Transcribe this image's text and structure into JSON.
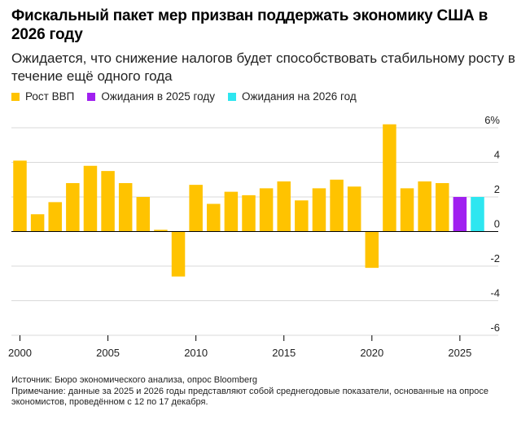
{
  "header": {
    "title": "Фискальный пакет мер призван поддержать экономику США в 2026 году",
    "subtitle": "Ожидается, что снижение налогов будет способствовать стабильному росту в течение ещё одного года"
  },
  "legend": [
    {
      "label": "Рост ВВП",
      "color": "#FFC300"
    },
    {
      "label": "Ожидания в 2025 году",
      "color": "#A020F0"
    },
    {
      "label": "Ожидания на 2026 год",
      "color": "#2EE6F0"
    }
  ],
  "footer": {
    "source": "Источник: Бюро экономического анализа, опрос Bloomberg",
    "note": "Примечание: данные за 2025 и 2026 годы представляют собой среднегодовые показатели, основанные на опросе экономистов, проведённом с 12 по 17 декабря."
  },
  "chart_data": {
    "type": "bar",
    "title": "Фискальный пакет мер призван поддержать экономику США в 2026 году",
    "ylabel": "",
    "xlabel": "",
    "ylim": [
      -6,
      6
    ],
    "y_ticks": [
      "6%",
      "4",
      "2",
      "0",
      "-2",
      "-4",
      "-6"
    ],
    "y_tick_values": [
      6,
      4,
      2,
      0,
      -2,
      -4,
      -6
    ],
    "x_ticks": [
      "2000",
      "2005",
      "2010",
      "2015",
      "2020",
      "2025"
    ],
    "x_tick_values": [
      2000,
      2005,
      2010,
      2015,
      2020,
      2025
    ],
    "series": [
      {
        "name": "Рост ВВП",
        "color": "#FFC300",
        "x": [
          2000,
          2001,
          2002,
          2003,
          2004,
          2005,
          2006,
          2007,
          2008,
          2009,
          2010,
          2011,
          2012,
          2013,
          2014,
          2015,
          2016,
          2017,
          2018,
          2019,
          2020,
          2021,
          2022,
          2023,
          2024
        ],
        "values": [
          4.1,
          1.0,
          1.7,
          2.8,
          3.8,
          3.5,
          2.8,
          2.0,
          0.1,
          -2.6,
          2.7,
          1.6,
          2.3,
          2.1,
          2.5,
          2.9,
          1.8,
          2.5,
          3.0,
          2.6,
          -2.1,
          6.2,
          2.5,
          2.9,
          2.8
        ]
      },
      {
        "name": "Ожидания в 2025 году",
        "color": "#A020F0",
        "x": [
          2025
        ],
        "values": [
          2.0
        ]
      },
      {
        "name": "Ожидания на 2026 год",
        "color": "#2EE6F0",
        "x": [
          2026
        ],
        "values": [
          2.0
        ]
      }
    ]
  }
}
